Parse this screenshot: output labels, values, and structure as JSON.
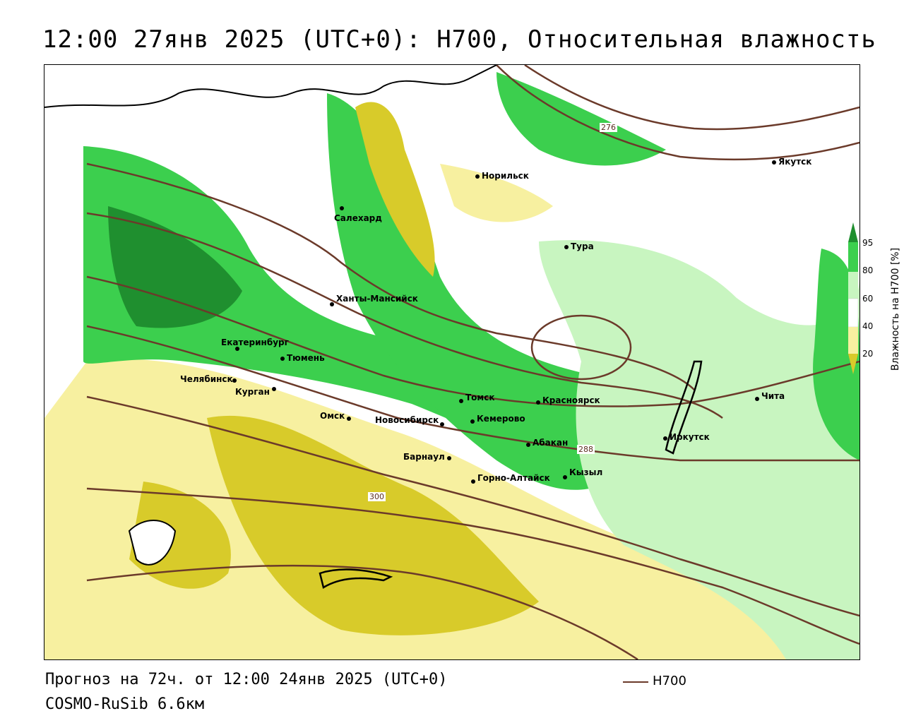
{
  "title": "12:00 27янв 2025 (UTC+0): H700, Относительная влажность",
  "footer": {
    "forecast": "Прогноз на 72ч. от 12:00 24янв 2025 (UTC+0)",
    "model": "COSMO-RuSib 6.6км"
  },
  "line_legend": {
    "label": "H700",
    "color": "#6b3a2a"
  },
  "colorbar": {
    "title": "Влажность на H700 [%]",
    "ticks": [
      "95",
      "80",
      "60",
      "40",
      "20"
    ],
    "colors": {
      "very_wet": "#1f8f2f",
      "wet": "#3ccf4e",
      "moist": "#c8f5c0",
      "neutral": "#ffffff",
      "dryish": "#f7f0a0",
      "dry": "#d8cb2a"
    }
  },
  "cities": [
    {
      "name": "Норильск"
    },
    {
      "name": "Якутск"
    },
    {
      "name": "Салехард"
    },
    {
      "name": "Тура"
    },
    {
      "name": "Ханты-Мансийск"
    },
    {
      "name": "Екатеринбург"
    },
    {
      "name": "Тюмень"
    },
    {
      "name": "Челябинск"
    },
    {
      "name": "Курган"
    },
    {
      "name": "Омск"
    },
    {
      "name": "Новосибирск"
    },
    {
      "name": "Томск"
    },
    {
      "name": "Кемерово"
    },
    {
      "name": "Красноярск"
    },
    {
      "name": "Абакан"
    },
    {
      "name": "Барнаул"
    },
    {
      "name": "Горно-Алтайск"
    },
    {
      "name": "Кызыл"
    },
    {
      "name": "Иркутск"
    },
    {
      "name": "Чита"
    }
  ],
  "contour_labels": [
    "276",
    "288",
    "300"
  ]
}
